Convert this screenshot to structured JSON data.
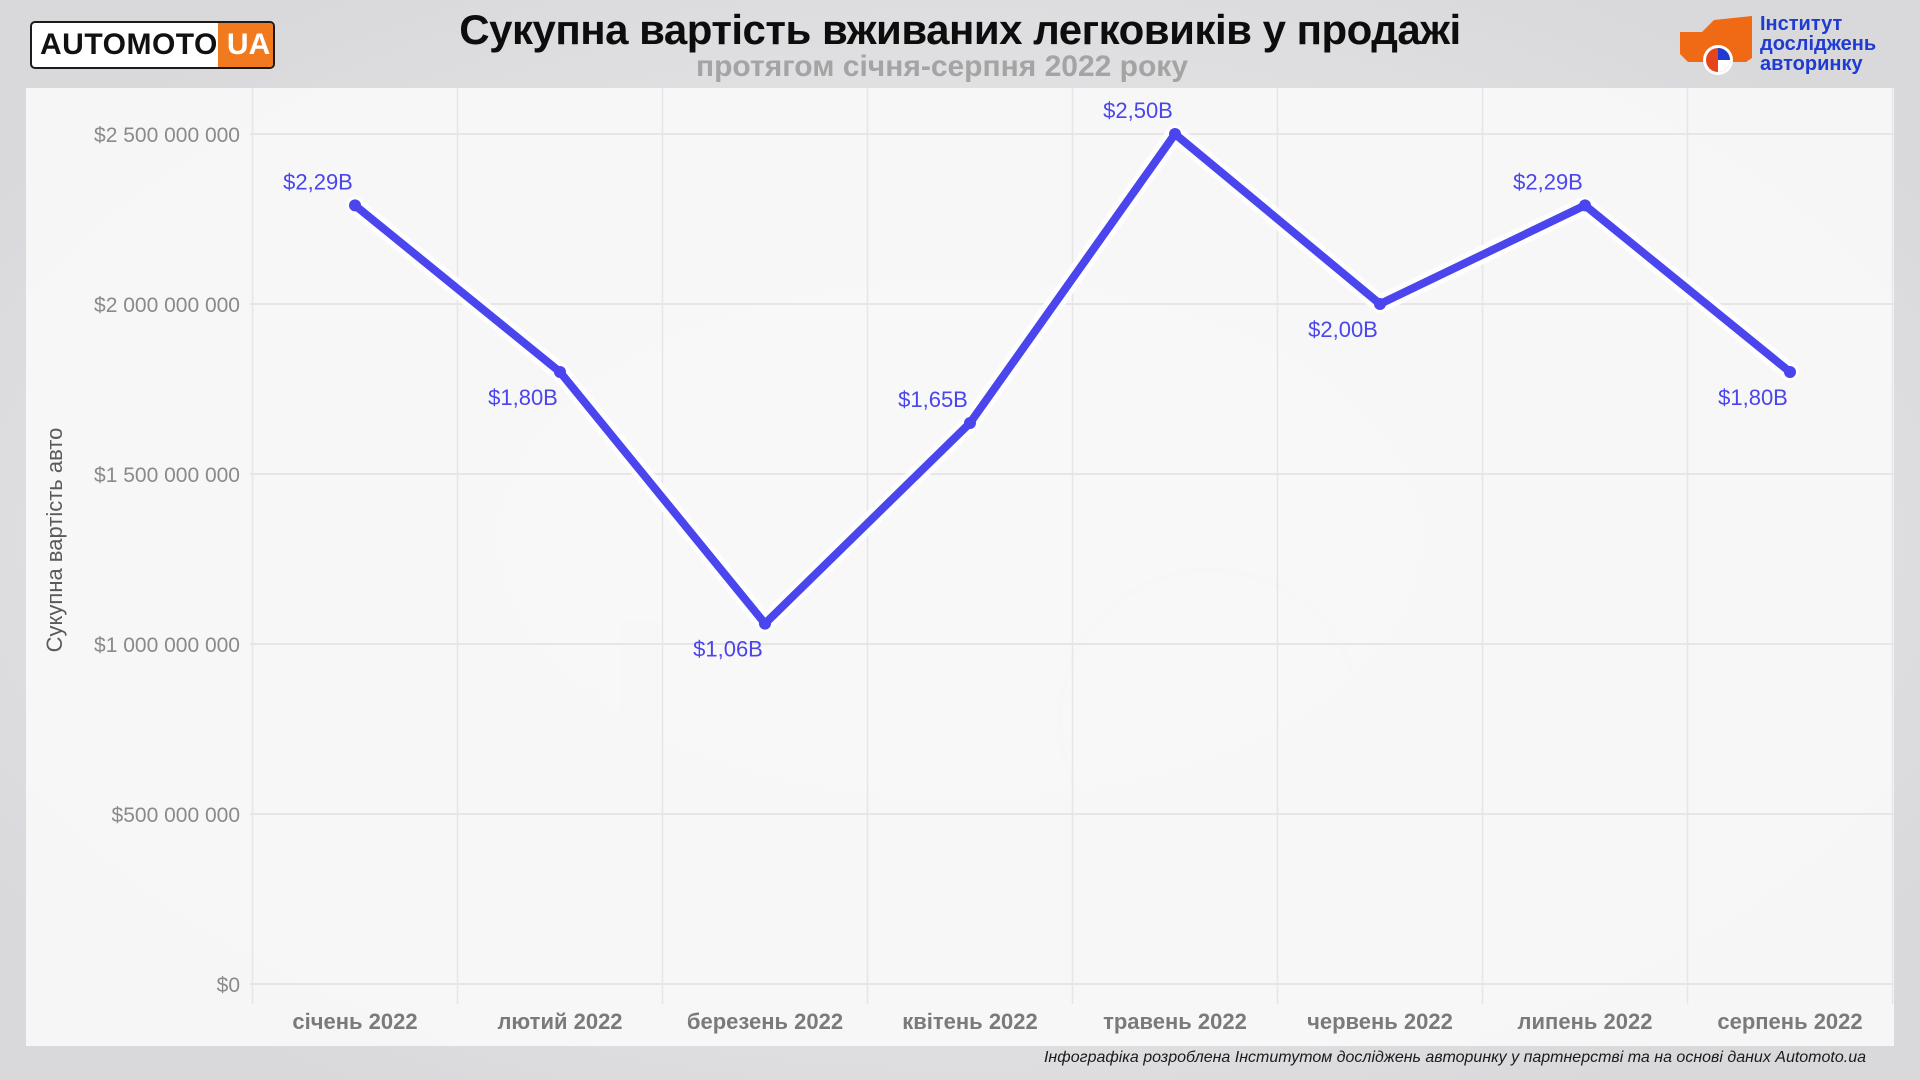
{
  "header": {
    "title": "Сукупна вартість вживаних легковиків у продажі",
    "subtitle": "протягом січня-серпня 2022 року"
  },
  "logos": {
    "left_part1": "AUTOMOTO",
    "left_part2": "UA",
    "right_lines": [
      "Інститут",
      "досліджень",
      "авторинку"
    ]
  },
  "footer": {
    "text": "Інфографіка розроблена Інститутом досліджень авторинку у партнерстві та на основі даних Automoto.ua"
  },
  "colors": {
    "line": "#4b45ee",
    "label": "#4b45ee",
    "brand_orange": "#f07a1d",
    "brand_blue": "#1f3bd0"
  },
  "chart_data": {
    "type": "line",
    "title": "Сукупна вартість вживаних легковиків у продажі",
    "subtitle": "протягом січня-серпня 2022 року",
    "xlabel": "",
    "ylabel": "Сукупна вартість авто",
    "categories": [
      "січень 2022",
      "лютий 2022",
      "березень 2022",
      "квітень 2022",
      "травень 2022",
      "червень 2022",
      "липень 2022",
      "серпень 2022"
    ],
    "values": [
      2290000000,
      1800000000,
      1060000000,
      1650000000,
      2500000000,
      2000000000,
      2290000000,
      1800000000
    ],
    "data_labels": [
      "$2,29B",
      "$1,80B",
      "$1,06B",
      "$1,65B",
      "$2,50B",
      "$2,00B",
      "$2,29B",
      "$1,80B"
    ],
    "label_position": [
      "above",
      "below",
      "below",
      "above",
      "above",
      "below",
      "above",
      "below"
    ],
    "ylim": [
      0,
      2500000000
    ],
    "yticks": [
      0,
      500000000,
      1000000000,
      1500000000,
      2000000000,
      2500000000
    ],
    "ytick_labels": [
      "$0",
      "$500 000 000",
      "$1 000 000 000",
      "$1 500 000 000",
      "$2 000 000 000",
      "$2 500 000 000"
    ],
    "grid": true,
    "legend": "none"
  }
}
